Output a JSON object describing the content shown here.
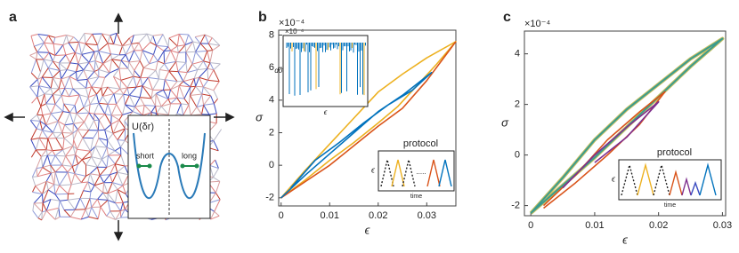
{
  "panel_a": {
    "label": "a",
    "inset_title": "U(δr)",
    "short": "short",
    "long": "long"
  },
  "chart_data": [
    {
      "type": "line",
      "panel": "b",
      "ylabel": "σ",
      "xlabel": "ϵ",
      "exponent": "×10⁻⁴",
      "xlim": [
        -0.0005,
        0.036
      ],
      "ylim": [
        -2.5,
        8.3
      ],
      "xticks": [
        0,
        0.01,
        0.02,
        0.03
      ],
      "yticks": [
        -2,
        0,
        2,
        4,
        6,
        8
      ],
      "inset": {
        "ylabel": "dσ",
        "xlabel": "ϵ",
        "exponent": "×10⁻⁴"
      },
      "protocol": {
        "title": "protocol",
        "ylabel": "ϵ",
        "xlabel": "time",
        "dots": "....."
      },
      "series": [
        {
          "color": "#edb120",
          "x": [
            0,
            0.005,
            0.01,
            0.015,
            0.02,
            0.025,
            0.03,
            0.036,
            0.032,
            0.028,
            0.024,
            0.02,
            0.015,
            0.01,
            0.005,
            0
          ],
          "values": [
            -2,
            -0.3,
            1.3,
            2.9,
            4.5,
            5.6,
            6.6,
            7.6,
            6.2,
            4.9,
            3.6,
            2.6,
            1.4,
            0.3,
            -0.9,
            -2
          ]
        },
        {
          "color": "#d95319",
          "x": [
            0,
            0.005,
            0.01,
            0.015,
            0.02,
            0.025,
            0.03,
            0.036
          ],
          "values": [
            -2,
            -1,
            0,
            1.2,
            2.4,
            3.5,
            5.2,
            7.6
          ]
        },
        {
          "color": "#0072bd",
          "x": [
            0,
            0.005,
            0.01,
            0.015,
            0.02,
            0.025,
            0.031,
            0.027,
            0.022,
            0.017,
            0.012,
            0.007,
            0.002
          ],
          "values": [
            -2,
            -0.6,
            0.7,
            2,
            3.3,
            4.3,
            5.7,
            4.6,
            3.7,
            2.6,
            1.4,
            0.3,
            -1.4
          ]
        }
      ]
    },
    {
      "type": "line",
      "panel": "c",
      "ylabel": "σ",
      "xlabel": "ϵ",
      "exponent": "×10⁻⁴",
      "xlim": [
        -0.001,
        0.0305
      ],
      "ylim": [
        -2.4,
        4.9
      ],
      "xticks": [
        0,
        0.01,
        0.02,
        0.03
      ],
      "yticks": [
        -2,
        0,
        2,
        4
      ],
      "protocol": {
        "title": "protocol",
        "ylabel": "ϵ",
        "xlabel": "time"
      },
      "series": [
        {
          "color": "#3a9b8f",
          "x": [
            0,
            0.005,
            0.01,
            0.015,
            0.02,
            0.025,
            0.03,
            0.025,
            0.02,
            0.015,
            0.01,
            0.005,
            0
          ],
          "values": [
            -2.3,
            -0.9,
            0.6,
            1.8,
            2.8,
            3.8,
            4.6,
            3.5,
            2.3,
            1.1,
            -0.1,
            -1.2,
            -2.3
          ]
        },
        {
          "color": "#d95319",
          "x": [
            0.002,
            0.007,
            0.012,
            0.017,
            0.021,
            0.017,
            0.012,
            0.007,
            0.002
          ],
          "values": [
            -2,
            -0.8,
            0.6,
            1.7,
            2.5,
            1.2,
            0,
            -1.1,
            -2.1
          ]
        },
        {
          "color": "#7e2f8e",
          "x": [
            0.005,
            0.01,
            0.015,
            0.02,
            0.015,
            0.01
          ],
          "values": [
            -1.3,
            0,
            1.1,
            2.1,
            0.7,
            -0.3
          ]
        }
      ]
    }
  ]
}
